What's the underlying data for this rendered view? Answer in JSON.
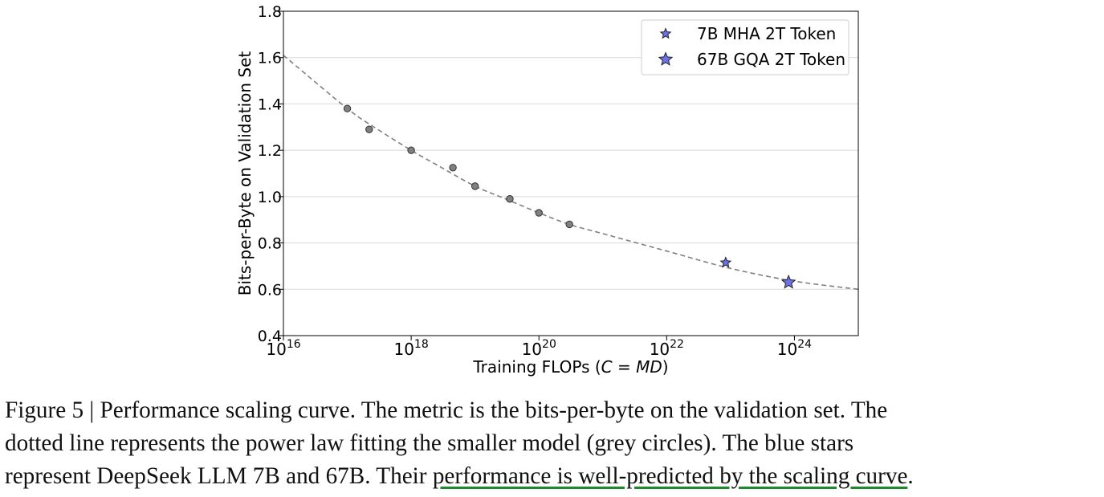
{
  "chart_data": {
    "type": "scatter",
    "title": "",
    "xlabel_prefix": "Training FLOPs (",
    "xlabel_var1": "C",
    "xlabel_eq": " = ",
    "xlabel_var2": "MD",
    "xlabel_suffix": ")",
    "ylabel": "Bits-per-Byte on Validation Set",
    "x_scale": "log",
    "xlim": [
      1e+16,
      1e+25
    ],
    "ylim": [
      0.4,
      1.8
    ],
    "x_ticks": [
      {
        "value": 1e+16,
        "base": "10",
        "exp": "16"
      },
      {
        "value": 1e+18,
        "base": "10",
        "exp": "18"
      },
      {
        "value": 1e+20,
        "base": "10",
        "exp": "20"
      },
      {
        "value": 1e+22,
        "base": "10",
        "exp": "22"
      },
      {
        "value": 1e+24,
        "base": "10",
        "exp": "24"
      }
    ],
    "y_ticks": [
      {
        "value": 0.4,
        "label": "0.4"
      },
      {
        "value": 0.6,
        "label": "0.6"
      },
      {
        "value": 0.8,
        "label": "0.8"
      },
      {
        "value": 1.0,
        "label": "1.0"
      },
      {
        "value": 1.2,
        "label": "1.2"
      },
      {
        "value": 1.4,
        "label": "1.4"
      },
      {
        "value": 1.6,
        "label": "1.6"
      },
      {
        "value": 1.8,
        "label": "1.8"
      }
    ],
    "grid": "horizontal",
    "legend_position": "top-right",
    "fit_curve": {
      "style": "dashed",
      "color": "#808080",
      "x": [
        1e+16,
        1e+17,
        3e+17,
        1e+18,
        3e+18,
        1e+19,
        3e+19,
        1e+20,
        3e+20,
        1e+21,
        1e+22,
        1e+23,
        1e+24,
        1e+25
      ],
      "y": [
        1.61,
        1.38,
        1.29,
        1.2,
        1.125,
        1.045,
        0.99,
        0.93,
        0.88,
        0.84,
        0.765,
        0.69,
        0.635,
        0.6
      ]
    },
    "small_models": {
      "marker": "circle",
      "color": "#808080",
      "x": [
        1e+17,
        2.2e+17,
        1e+18,
        4.5e+18,
        1e+19,
        3.5e+19,
        1e+20,
        3e+20
      ],
      "y": [
        1.38,
        1.29,
        1.2,
        1.125,
        1.045,
        0.99,
        0.93,
        0.88
      ]
    },
    "series": [
      {
        "name": "7B MHA 2T Token",
        "marker": "star",
        "color": "#6b72e8",
        "x": 8.4e+22,
        "y": 0.715,
        "size": "small"
      },
      {
        "name": "67B GQA 2T Token",
        "marker": "star",
        "color": "#6b72e8",
        "x": 8.1e+23,
        "y": 0.63,
        "size": "large"
      }
    ]
  },
  "caption": {
    "line1": "Figure 5 | Performance scaling curve. The metric is the bits-per-byte on the validation set. The",
    "line2": "dotted line represents the power law fitting the smaller model (grey circles). The blue stars",
    "line3_start": "represent DeepSeek LLM 7B and 67B. Their ",
    "line3_underlined": "performance is well-predicted by the scaling curve",
    "line3_end": ".",
    "underline_color": "#1e8a2e"
  }
}
